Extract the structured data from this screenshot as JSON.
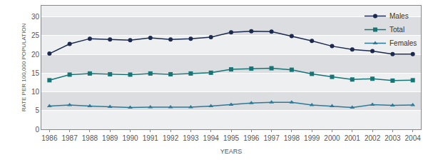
{
  "chart_data": {
    "type": "line",
    "x_label": "YEARS",
    "y_label": "RATE PER 100,000 POPULATION",
    "x": [
      1986,
      1987,
      1988,
      1989,
      1990,
      1991,
      1992,
      1993,
      1994,
      1995,
      1996,
      1997,
      1998,
      1999,
      2000,
      2001,
      2002,
      2003,
      2004
    ],
    "series": [
      {
        "name": "Males",
        "color": "#1b2a4e",
        "marker": "circle",
        "values": [
          20.2,
          22.8,
          24.2,
          24.0,
          23.8,
          24.4,
          24.0,
          24.2,
          24.6,
          25.9,
          26.2,
          26.1,
          24.9,
          23.6,
          22.2,
          21.3,
          20.9,
          20.1,
          20.1
        ]
      },
      {
        "name": "Total",
        "color": "#167575",
        "marker": "square",
        "values": [
          13.1,
          14.6,
          14.9,
          14.7,
          14.6,
          14.9,
          14.7,
          14.9,
          15.1,
          16.0,
          16.2,
          16.3,
          15.9,
          14.8,
          14.0,
          13.3,
          13.5,
          13.0,
          13.1
        ]
      },
      {
        "name": "Females",
        "color": "#2b7b98",
        "marker": "triangle-up",
        "values": [
          6.2,
          6.5,
          6.2,
          6.0,
          5.8,
          5.9,
          5.9,
          5.9,
          6.2,
          6.6,
          7.0,
          7.2,
          7.2,
          6.5,
          6.2,
          5.8,
          6.6,
          6.4,
          6.5
        ]
      }
    ],
    "xlim": [
      1985.6,
      2004.4
    ],
    "xticks": [
      1986,
      1987,
      1988,
      1989,
      1990,
      1991,
      1992,
      1993,
      1994,
      1995,
      1996,
      1997,
      1998,
      1999,
      2000,
      2001,
      2002,
      2003,
      2004
    ],
    "ylim": [
      0,
      33
    ],
    "yticks": [
      0,
      5,
      10,
      15,
      20,
      25,
      30
    ],
    "grid": true,
    "legend": "top right"
  }
}
